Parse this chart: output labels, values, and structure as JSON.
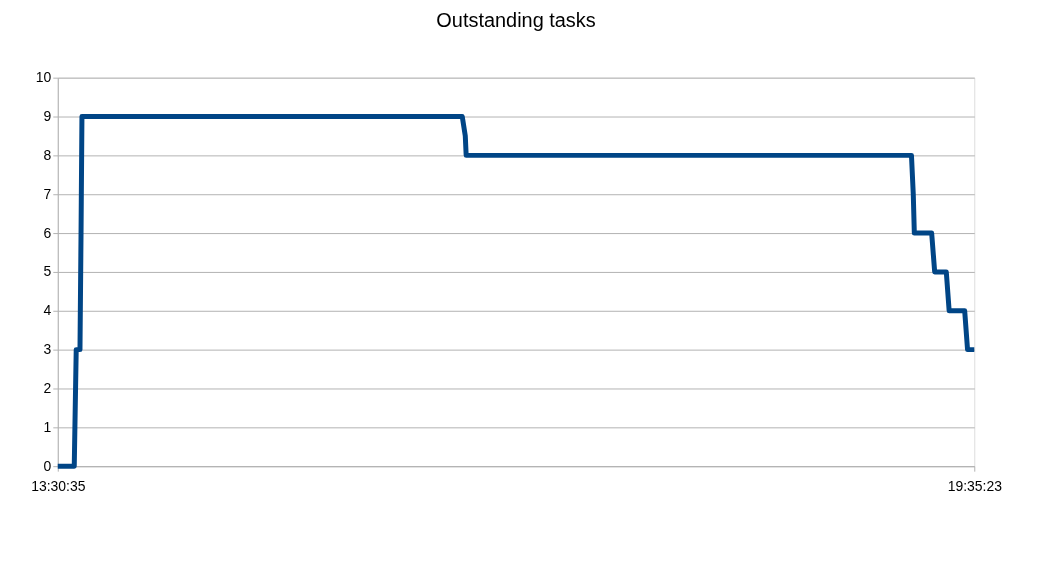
{
  "chart_data": {
    "type": "line",
    "title": "Outstanding tasks",
    "x": [
      13.5097,
      13.619,
      13.632,
      13.657,
      13.664,
      13.67,
      16.193,
      16.213,
      16.219,
      19.173,
      19.185,
      19.192,
      19.307,
      19.327,
      19.404,
      19.423,
      19.526,
      19.545,
      19.5897
    ],
    "series": [
      {
        "color": "#004586",
        "values": [
          0,
          0,
          3,
          3,
          6,
          9,
          9,
          8.5,
          8,
          8,
          7,
          6,
          6,
          5,
          5,
          4,
          4,
          3,
          3
        ]
      }
    ],
    "xlim": [
      13.5097,
      19.5897
    ],
    "xticks": [
      {
        "value": 13.5097,
        "label": "13:30:35"
      },
      {
        "value": 19.5897,
        "label": "19:35:23"
      }
    ],
    "ylim": [
      0,
      10
    ],
    "yticks": [
      0,
      1,
      2,
      3,
      4,
      5,
      6,
      7,
      8,
      9,
      10
    ],
    "grid": "y",
    "marker": "none",
    "line_style": "solid",
    "legend": false
  }
}
